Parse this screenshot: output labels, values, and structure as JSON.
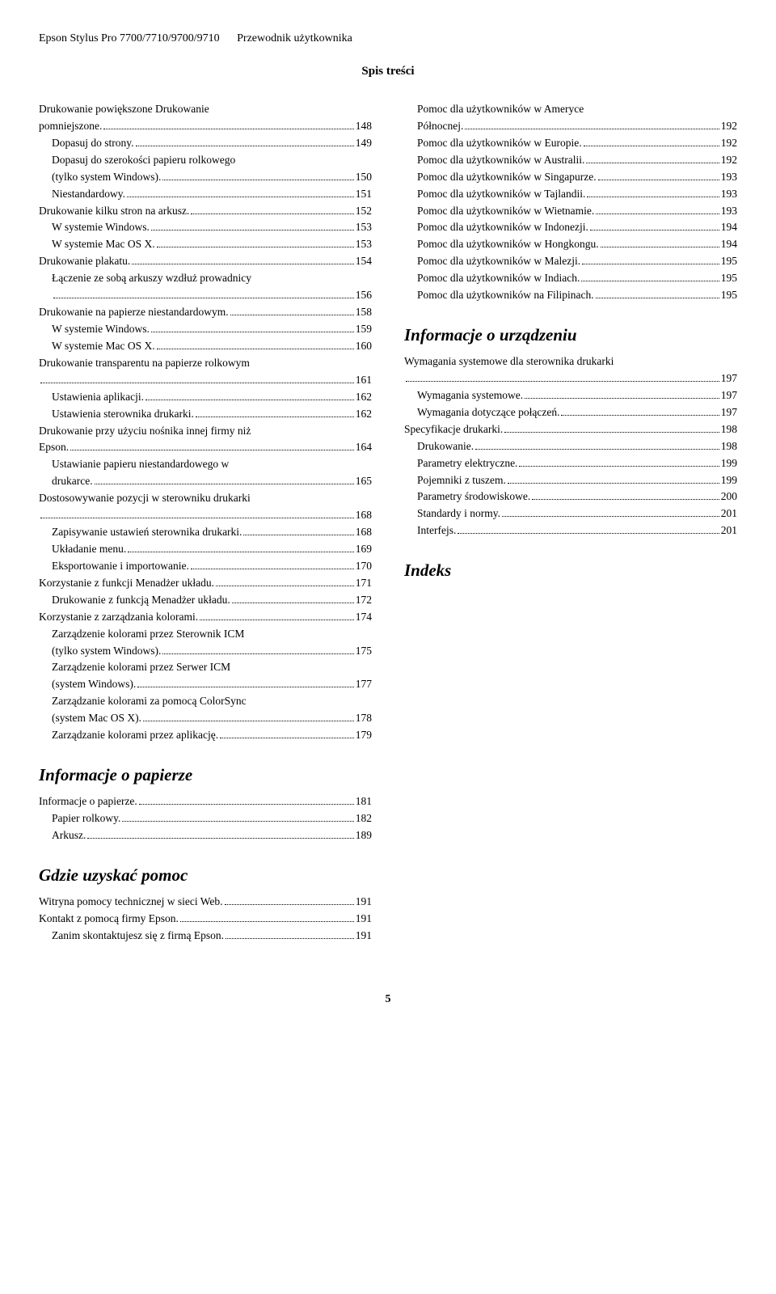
{
  "header": {
    "product": "Epson Stylus Pro 7700/7710/9700/9710",
    "guide": "Przewodnik użytkownika"
  },
  "page_title": "Spis treści",
  "footer_page": "5",
  "left": [
    {
      "type": "wrap",
      "level": 0,
      "pre": "Drukowanie powiększone Drukowanie"
    },
    {
      "type": "line",
      "level": 0,
      "label": "pomniejszone.",
      "page": "148"
    },
    {
      "type": "line",
      "level": 1,
      "label": "Dopasuj do strony.",
      "page": "149"
    },
    {
      "type": "wrap",
      "level": 1,
      "pre": "Dopasuj do szerokości papieru rolkowego"
    },
    {
      "type": "line",
      "level": 1,
      "label": "(tylko system Windows).",
      "page": "150"
    },
    {
      "type": "line",
      "level": 1,
      "label": "Niestandardowy.",
      "page": "151"
    },
    {
      "type": "line",
      "level": 0,
      "label": "Drukowanie kilku stron na arkusz.",
      "page": "152"
    },
    {
      "type": "line",
      "level": 1,
      "label": "W systemie Windows.",
      "page": "153"
    },
    {
      "type": "line",
      "level": 1,
      "label": "W systemie Mac OS X.",
      "page": "153"
    },
    {
      "type": "line",
      "level": 0,
      "label": "Drukowanie plakatu.",
      "page": "154"
    },
    {
      "type": "wrap",
      "level": 1,
      "pre": "Łączenie ze sobą arkuszy wzdłuż prowadnicy"
    },
    {
      "type": "line",
      "level": 1,
      "label": "",
      "page": "156"
    },
    {
      "type": "line",
      "level": 0,
      "label": "Drukowanie na papierze niestandardowym.",
      "page": "158"
    },
    {
      "type": "line",
      "level": 1,
      "label": "W systemie Windows.",
      "page": "159"
    },
    {
      "type": "line",
      "level": 1,
      "label": "W systemie Mac OS X.",
      "page": "160"
    },
    {
      "type": "wrap",
      "level": 0,
      "pre": "Drukowanie transparentu na papierze rolkowym"
    },
    {
      "type": "line",
      "level": 0,
      "label": "",
      "page": "161"
    },
    {
      "type": "line",
      "level": 1,
      "label": "Ustawienia aplikacji.",
      "page": "162"
    },
    {
      "type": "line",
      "level": 1,
      "label": "Ustawienia sterownika drukarki.",
      "page": "162"
    },
    {
      "type": "wrap",
      "level": 0,
      "pre": "Drukowanie przy użyciu nośnika innej firmy niż"
    },
    {
      "type": "line",
      "level": 0,
      "label": "Epson.",
      "page": "164"
    },
    {
      "type": "wrap",
      "level": 1,
      "pre": "Ustawianie papieru niestandardowego w"
    },
    {
      "type": "line",
      "level": 1,
      "label": "drukarce.",
      "page": "165"
    },
    {
      "type": "wrap",
      "level": 0,
      "pre": "Dostosowywanie pozycji w sterowniku drukarki"
    },
    {
      "type": "line",
      "level": 0,
      "label": "",
      "page": "168"
    },
    {
      "type": "line",
      "level": 1,
      "label": "Zapisywanie ustawień sterownika drukarki.",
      "page": "168"
    },
    {
      "type": "line",
      "level": 1,
      "label": "Układanie menu.",
      "page": "169"
    },
    {
      "type": "line",
      "level": 1,
      "label": "Eksportowanie i importowanie.",
      "page": "170"
    },
    {
      "type": "line",
      "level": 0,
      "label": "Korzystanie z funkcji Menadżer układu.",
      "page": "171"
    },
    {
      "type": "line",
      "level": 1,
      "label": "Drukowanie z funkcją Menadżer układu.",
      "page": "172"
    },
    {
      "type": "line",
      "level": 0,
      "label": "Korzystanie z zarządzania kolorami.",
      "page": "174"
    },
    {
      "type": "wrap",
      "level": 1,
      "pre": "Zarządzenie kolorami przez Sterownik ICM"
    },
    {
      "type": "line",
      "level": 1,
      "label": "(tylko system Windows).",
      "page": "175"
    },
    {
      "type": "wrap",
      "level": 1,
      "pre": "Zarządzenie kolorami przez Serwer ICM"
    },
    {
      "type": "line",
      "level": 1,
      "label": "(system Windows).",
      "page": "177"
    },
    {
      "type": "wrap",
      "level": 1,
      "pre": "Zarządzanie kolorami za pomocą ColorSync"
    },
    {
      "type": "line",
      "level": 1,
      "label": "(system Mac OS X).",
      "page": "178"
    },
    {
      "type": "line",
      "level": 1,
      "label": "Zarządzanie kolorami przez aplikację.",
      "page": "179"
    },
    {
      "type": "section",
      "label": "Informacje o papierze"
    },
    {
      "type": "line",
      "level": 0,
      "label": "Informacje o papierze.",
      "page": "181"
    },
    {
      "type": "line",
      "level": 1,
      "label": "Papier rolkowy.",
      "page": "182"
    },
    {
      "type": "line",
      "level": 1,
      "label": "Arkusz.",
      "page": "189"
    },
    {
      "type": "section",
      "label": "Gdzie uzyskać pomoc"
    },
    {
      "type": "line",
      "level": 0,
      "label": "Witryna pomocy technicznej w sieci Web.",
      "page": "191"
    },
    {
      "type": "line",
      "level": 0,
      "label": "Kontakt z pomocą firmy Epson.",
      "page": "191"
    },
    {
      "type": "line",
      "level": 1,
      "label": "Zanim skontaktujesz się z firmą Epson.",
      "page": "191"
    }
  ],
  "right": [
    {
      "type": "wrap",
      "level": 1,
      "pre": "Pomoc dla użytkowników w Ameryce"
    },
    {
      "type": "line",
      "level": 1,
      "label": "Północnej.",
      "page": "192"
    },
    {
      "type": "line",
      "level": 1,
      "label": "Pomoc dla użytkowników w Europie.",
      "page": "192"
    },
    {
      "type": "line",
      "level": 1,
      "label": "Pomoc dla użytkowników w Australii.",
      "page": "192"
    },
    {
      "type": "line",
      "level": 1,
      "label": "Pomoc dla użytkowników w Singapurze.",
      "page": "193"
    },
    {
      "type": "line",
      "level": 1,
      "label": "Pomoc dla użytkowników w Tajlandii.",
      "page": "193"
    },
    {
      "type": "line",
      "level": 1,
      "label": "Pomoc dla użytkowników w Wietnamie.",
      "page": "193"
    },
    {
      "type": "line",
      "level": 1,
      "label": "Pomoc dla użytkowników w Indonezji.",
      "page": "194"
    },
    {
      "type": "line",
      "level": 1,
      "label": "Pomoc dla użytkowników w Hongkongu.",
      "page": "194"
    },
    {
      "type": "line",
      "level": 1,
      "label": "Pomoc dla użytkowników w Malezji.",
      "page": "195"
    },
    {
      "type": "line",
      "level": 1,
      "label": "Pomoc dla użytkowników w Indiach.",
      "page": "195"
    },
    {
      "type": "line",
      "level": 1,
      "label": "Pomoc dla użytkowników na Filipinach.",
      "page": "195"
    },
    {
      "type": "section",
      "label": "Informacje o urządzeniu"
    },
    {
      "type": "wrap",
      "level": 0,
      "pre": "Wymagania systemowe dla sterownika drukarki"
    },
    {
      "type": "line",
      "level": 0,
      "label": "",
      "page": "197"
    },
    {
      "type": "line",
      "level": 1,
      "label": "Wymagania systemowe.",
      "page": "197"
    },
    {
      "type": "line",
      "level": 1,
      "label": "Wymagania dotyczące połączeń.",
      "page": "197"
    },
    {
      "type": "line",
      "level": 0,
      "label": "Specyfikacje drukarki.",
      "page": "198"
    },
    {
      "type": "line",
      "level": 1,
      "label": "Drukowanie.",
      "page": "198"
    },
    {
      "type": "line",
      "level": 1,
      "label": "Parametry elektryczne.",
      "page": "199"
    },
    {
      "type": "line",
      "level": 1,
      "label": "Pojemniki z tuszem.",
      "page": "199"
    },
    {
      "type": "line",
      "level": 1,
      "label": "Parametry środowiskowe.",
      "page": "200"
    },
    {
      "type": "line",
      "level": 1,
      "label": "Standardy i normy.",
      "page": "201"
    },
    {
      "type": "line",
      "level": 1,
      "label": "Interfejs.",
      "page": "201"
    },
    {
      "type": "section",
      "label": "Indeks"
    }
  ]
}
